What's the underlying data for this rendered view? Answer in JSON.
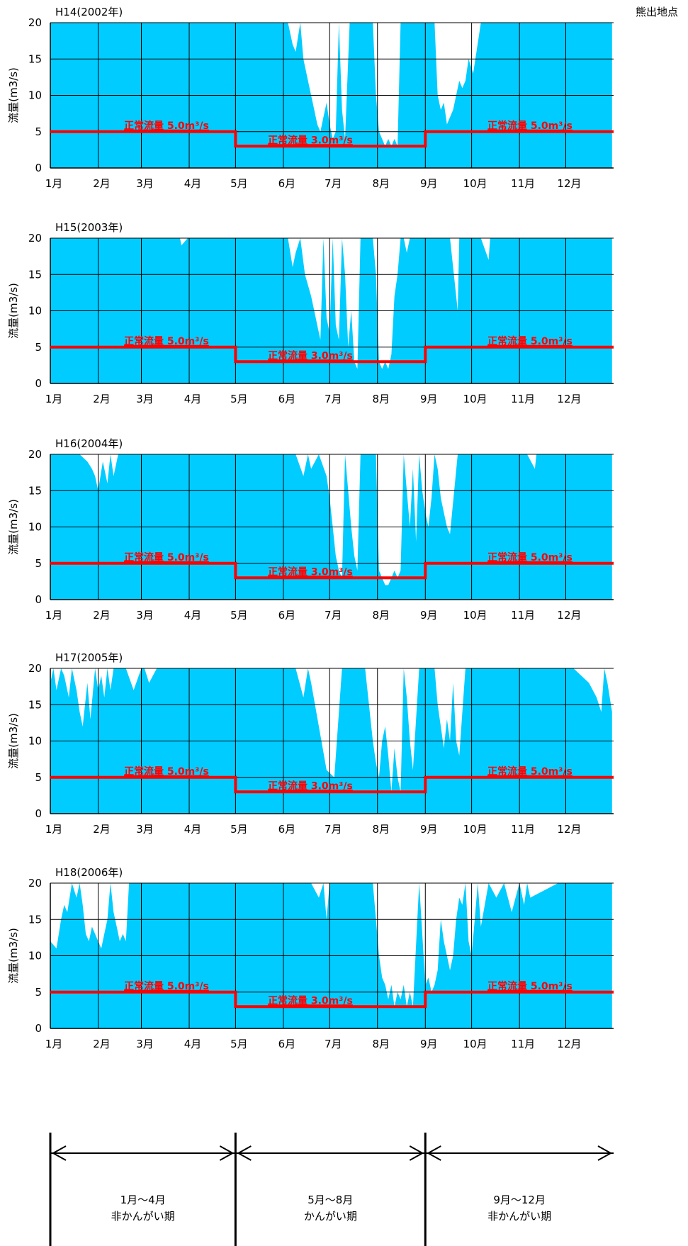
{
  "station": "熊出地点",
  "ylabel": "流量(m3/s)",
  "months": [
    "1月",
    "2月",
    "3月",
    "4月",
    "5月",
    "6月",
    "7月",
    "8月",
    "9月",
    "10月",
    "11月",
    "12月"
  ],
  "yticks": [
    0,
    5,
    10,
    15,
    20
  ],
  "colors": {
    "flow": "#00CCFF",
    "normal": "#FF0000",
    "grid": "#000000"
  },
  "normal_flow": [
    {
      "label": "正常流量 5.0m³/s",
      "value": 5.0,
      "from_month": 1,
      "to_month": 5
    },
    {
      "label": "正常流量 3.0m³/s",
      "value": 3.0,
      "from_month": 5,
      "to_month": 9
    },
    {
      "label": "正常流量 5.0m³/s",
      "value": 5.0,
      "from_month": 9,
      "to_month": 13
    }
  ],
  "periods": [
    {
      "months": "1月～4月",
      "name": "非かんがい期"
    },
    {
      "months": "5月～8月",
      "name": "かんがい期"
    },
    {
      "months": "9月～12月",
      "name": "非かんがい期"
    }
  ],
  "chart_data": [
    {
      "type": "area",
      "title": "H14(2002年)",
      "ylabel": "流量(m3/s)",
      "ylim": [
        0,
        20
      ],
      "grid": true,
      "x_unit": "day of year",
      "x": [
        1,
        30,
        60,
        90,
        120,
        150,
        155,
        158,
        160,
        163,
        165,
        168,
        170,
        172,
        174,
        176,
        178,
        180,
        182,
        184,
        186,
        188,
        190,
        192,
        195,
        200,
        205,
        210,
        212,
        214,
        216,
        218,
        220,
        222,
        224,
        226,
        228,
        230,
        232,
        234,
        236,
        240,
        245,
        250,
        252,
        254,
        256,
        258,
        260,
        262,
        264,
        266,
        268,
        270,
        272,
        275,
        280,
        285,
        300,
        330,
        365
      ],
      "y": [
        20,
        20,
        20,
        20,
        20,
        20,
        20,
        17,
        16,
        20,
        15,
        12,
        10,
        8,
        6,
        5,
        7,
        9,
        6,
        4,
        5,
        20,
        8,
        4,
        20,
        20,
        20,
        20,
        10,
        5,
        4,
        3,
        4,
        3,
        4,
        3,
        20,
        20,
        20,
        20,
        20,
        20,
        20,
        20,
        10,
        8,
        9,
        6,
        7,
        8,
        10,
        12,
        11,
        12,
        15,
        13,
        20,
        20,
        20,
        20,
        20
      ],
      "normal_flow": [
        5,
        3,
        5
      ]
    },
    {
      "type": "area",
      "title": "H15(2003年)",
      "ylabel": "流量(m3/s)",
      "ylim": [
        0,
        20
      ],
      "grid": true,
      "x_unit": "day of year",
      "x": [
        1,
        30,
        60,
        85,
        86,
        90,
        120,
        150,
        155,
        158,
        160,
        163,
        166,
        170,
        172,
        174,
        176,
        178,
        180,
        182,
        184,
        186,
        188,
        190,
        192,
        194,
        196,
        198,
        200,
        202,
        205,
        210,
        212,
        214,
        216,
        218,
        220,
        222,
        224,
        226,
        228,
        230,
        232,
        234,
        240,
        245,
        250,
        260,
        265,
        266,
        270,
        280,
        285,
        286,
        300,
        330,
        365
      ],
      "y": [
        20,
        20,
        20,
        20,
        19,
        20,
        20,
        20,
        20,
        16,
        18,
        20,
        15,
        12,
        10,
        8,
        6,
        20,
        9,
        7,
        20,
        8,
        6,
        20,
        15,
        5,
        10,
        3,
        2,
        20,
        20,
        20,
        15,
        3,
        2,
        3,
        2,
        4,
        12,
        15,
        20,
        20,
        18,
        20,
        20,
        20,
        20,
        20,
        10,
        20,
        20,
        20,
        17,
        20,
        20,
        20,
        20
      ],
      "normal_flow": [
        5,
        3,
        5
      ]
    },
    {
      "type": "area",
      "title": "H16(2004年)",
      "ylabel": "流量(m3/s)",
      "ylim": [
        0,
        20
      ],
      "grid": true,
      "x_unit": "day of year",
      "x": [
        1,
        20,
        25,
        28,
        30,
        32,
        35,
        38,
        40,
        42,
        45,
        50,
        60,
        90,
        120,
        150,
        160,
        165,
        168,
        170,
        175,
        180,
        182,
        184,
        186,
        188,
        190,
        192,
        194,
        196,
        198,
        200,
        202,
        205,
        210,
        212,
        214,
        216,
        218,
        220,
        222,
        224,
        226,
        228,
        230,
        232,
        234,
        236,
        238,
        240,
        242,
        244,
        246,
        248,
        250,
        252,
        254,
        256,
        258,
        260,
        265,
        280,
        300,
        310,
        315,
        316,
        330,
        365
      ],
      "y": [
        20,
        20,
        19,
        18,
        17,
        15,
        19,
        16,
        20,
        17,
        20,
        20,
        20,
        20,
        20,
        20,
        20,
        17,
        20,
        18,
        20,
        17,
        14,
        10,
        6,
        4,
        3,
        20,
        15,
        10,
        6,
        4,
        20,
        20,
        20,
        20,
        4,
        3,
        2,
        2,
        3,
        4,
        3,
        4,
        20,
        15,
        10,
        18,
        8,
        20,
        15,
        12,
        10,
        14,
        20,
        18,
        14,
        12,
        10,
        9,
        20,
        20,
        20,
        20,
        18,
        20,
        20,
        20
      ],
      "normal_flow": [
        5,
        3,
        5
      ]
    },
    {
      "type": "area",
      "title": "H17(2005年)",
      "ylabel": "流量(m3/s)",
      "ylim": [
        0,
        20
      ],
      "grid": true,
      "x_unit": "day of year",
      "x": [
        1,
        3,
        5,
        8,
        10,
        13,
        15,
        18,
        20,
        22,
        25,
        27,
        30,
        32,
        34,
        36,
        38,
        40,
        42,
        45,
        50,
        55,
        60,
        62,
        65,
        70,
        90,
        120,
        150,
        160,
        165,
        168,
        170,
        175,
        180,
        185,
        190,
        195,
        200,
        205,
        210,
        212,
        214,
        216,
        218,
        220,
        222,
        224,
        226,
        228,
        230,
        232,
        234,
        236,
        240,
        245,
        250,
        252,
        254,
        256,
        258,
        260,
        262,
        264,
        266,
        270,
        280,
        300,
        330,
        340,
        350,
        355,
        358,
        360,
        362,
        365
      ],
      "y": [
        18,
        20,
        17,
        20,
        19,
        16,
        20,
        17,
        14,
        12,
        18,
        13,
        20,
        17,
        19,
        16,
        20,
        17,
        20,
        20,
        20,
        17,
        20,
        20,
        18,
        20,
        20,
        20,
        20,
        20,
        16,
        20,
        18,
        12,
        6,
        5,
        20,
        20,
        20,
        20,
        10,
        7,
        5,
        10,
        12,
        8,
        3,
        9,
        5,
        3,
        20,
        16,
        10,
        6,
        20,
        20,
        20,
        15,
        12,
        9,
        13,
        10,
        18,
        10,
        8,
        20,
        20,
        20,
        20,
        20,
        18,
        16,
        14,
        20,
        18,
        14
      ],
      "normal_flow": [
        5,
        3,
        5
      ]
    },
    {
      "type": "area",
      "title": "H18(2006年)",
      "ylabel": "流量(m3/s)",
      "ylim": [
        0,
        20
      ],
      "grid": true,
      "x_unit": "day of year",
      "x": [
        1,
        5,
        8,
        10,
        12,
        15,
        18,
        20,
        22,
        24,
        26,
        28,
        30,
        32,
        34,
        36,
        38,
        40,
        42,
        44,
        46,
        48,
        50,
        52,
        55,
        60,
        90,
        120,
        150,
        160,
        170,
        175,
        178,
        180,
        182,
        185,
        190,
        195,
        200,
        205,
        210,
        212,
        214,
        216,
        218,
        220,
        222,
        224,
        226,
        228,
        230,
        232,
        234,
        236,
        240,
        244,
        246,
        248,
        250,
        252,
        254,
        256,
        258,
        260,
        262,
        264,
        266,
        268,
        270,
        272,
        274,
        276,
        278,
        280,
        285,
        290,
        295,
        300,
        305,
        308,
        310,
        312,
        330,
        365
      ],
      "y": [
        12,
        11,
        15,
        17,
        16,
        20,
        18,
        20,
        17,
        13,
        12,
        14,
        13,
        12,
        11,
        13,
        15,
        20,
        16,
        14,
        12,
        13,
        12,
        20,
        20,
        20,
        20,
        20,
        20,
        20,
        20,
        18,
        20,
        15,
        20,
        20,
        20,
        20,
        20,
        20,
        20,
        15,
        10,
        7,
        6,
        4,
        6,
        3,
        5,
        4,
        6,
        3,
        5,
        3,
        20,
        6,
        7,
        5,
        6,
        8,
        15,
        12,
        10,
        8,
        10,
        15,
        18,
        17,
        20,
        12,
        10,
        15,
        20,
        14,
        20,
        18,
        20,
        16,
        20,
        17,
        20,
        18,
        20,
        20
      ],
      "normal_flow": [
        5,
        3,
        5
      ]
    }
  ]
}
